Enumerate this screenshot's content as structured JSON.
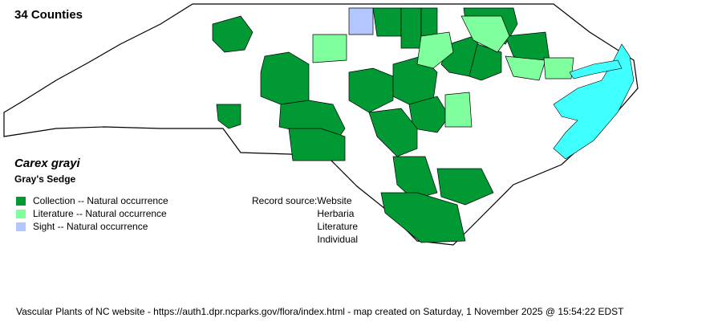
{
  "header": {
    "county_count": "34 Counties"
  },
  "species": {
    "scientific_name": "Carex grayi",
    "common_name": "Gray's Sedge"
  },
  "legend": [
    {
      "label": "Collection -- Natural occurrence",
      "color": "#009933"
    },
    {
      "label": "Literature -- Natural occurrence",
      "color": "#80ff9f"
    },
    {
      "label": "Sight -- Natural occurrence",
      "color": "#b3c6ff"
    }
  ],
  "record_source": {
    "label": "Record source:",
    "items": [
      "Website",
      "Herbaria",
      "Literature",
      "Individual"
    ]
  },
  "map_colors": {
    "water": "#40ffff",
    "county_default": "#ffffff",
    "border": "#000000"
  },
  "footer": "Vascular Plants of NC website - https://auth1.dpr.ncparks.gov/flora/index.html - map created on Saturday, 1 November 2025 @ 15:54:22 EDST"
}
